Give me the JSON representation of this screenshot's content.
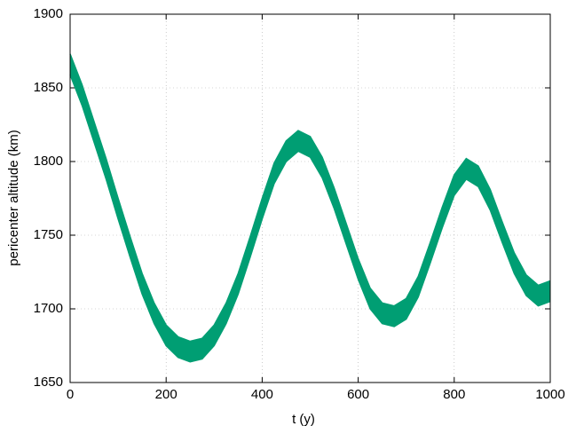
{
  "chart_data": {
    "type": "band",
    "x_label": "t (y)",
    "y_label": "pericenter altitude (km)",
    "x": [
      0,
      25,
      50,
      75,
      100,
      125,
      150,
      175,
      200,
      225,
      250,
      275,
      300,
      325,
      350,
      375,
      400,
      425,
      450,
      475,
      500,
      525,
      550,
      575,
      600,
      625,
      650,
      675,
      700,
      725,
      750,
      775,
      800,
      825,
      850,
      875,
      900,
      925,
      950,
      975,
      1000
    ],
    "upper": [
      1873,
      1852,
      1827,
      1802,
      1775,
      1749,
      1724,
      1704,
      1689,
      1681,
      1678,
      1680,
      1689,
      1704,
      1724,
      1749,
      1775,
      1799,
      1814,
      1821,
      1817,
      1803,
      1782,
      1758,
      1734,
      1714,
      1704,
      1702,
      1707,
      1722,
      1745,
      1769,
      1791,
      1802,
      1797,
      1781,
      1759,
      1738,
      1723,
      1716,
      1719
    ],
    "lower": [
      1859,
      1838,
      1813,
      1788,
      1761,
      1735,
      1710,
      1690,
      1675,
      1667,
      1664,
      1666,
      1675,
      1690,
      1710,
      1735,
      1761,
      1785,
      1800,
      1807,
      1803,
      1789,
      1768,
      1744,
      1720,
      1700,
      1690,
      1688,
      1693,
      1708,
      1731,
      1755,
      1777,
      1788,
      1783,
      1767,
      1745,
      1724,
      1709,
      1702,
      1705
    ],
    "color": "#009e73",
    "xlim": [
      0,
      1000
    ],
    "xticks": [
      0,
      200,
      400,
      600,
      800,
      1000
    ],
    "ylim": [
      1650,
      1900
    ],
    "yticks": [
      1650,
      1700,
      1750,
      1800,
      1850,
      1900
    ],
    "grid": true
  }
}
